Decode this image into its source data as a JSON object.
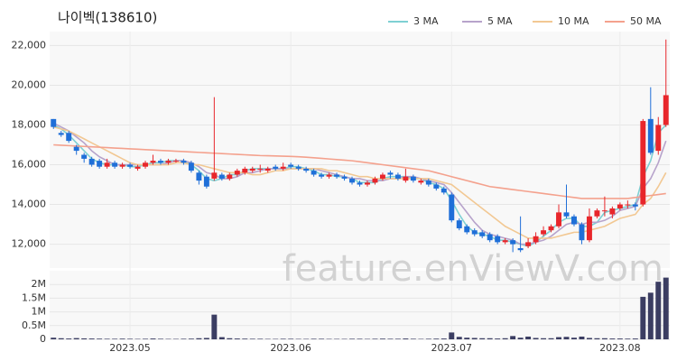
{
  "chart_data": {
    "type": "candlestick",
    "title": "나이벡(138610)",
    "watermark": "feature.enViewV.com",
    "categories": [
      null,
      null,
      null,
      null,
      null,
      null,
      null,
      null,
      null,
      null,
      "2023.05",
      null,
      null,
      null,
      null,
      null,
      null,
      null,
      null,
      null,
      null,
      null,
      null,
      null,
      null,
      null,
      null,
      null,
      null,
      null,
      null,
      "2023.06",
      null,
      null,
      null,
      null,
      null,
      null,
      null,
      null,
      null,
      null,
      null,
      null,
      null,
      null,
      null,
      null,
      null,
      null,
      null,
      null,
      "2023.07",
      null,
      null,
      null,
      null,
      null,
      null,
      null,
      null,
      null,
      null,
      null,
      null,
      null,
      null,
      null,
      null,
      null,
      null,
      null,
      null,
      null,
      "2023.08",
      null,
      null,
      null,
      null,
      null,
      null
    ],
    "open": [
      18300,
      17600,
      17600,
      16900,
      16500,
      16300,
      16200,
      15900,
      16100,
      15900,
      16000,
      15800,
      15900,
      16100,
      16200,
      16100,
      16200,
      16200,
      16100,
      15600,
      15400,
      15300,
      15500,
      15300,
      15500,
      15600,
      15700,
      15800,
      15700,
      15900,
      15800,
      16000,
      15900,
      15800,
      15700,
      15500,
      15400,
      15500,
      15400,
      15300,
      15100,
      15000,
      15100,
      15300,
      15600,
      15500,
      15200,
      15400,
      15100,
      15200,
      15000,
      14800,
      14500,
      13200,
      12900,
      12700,
      12600,
      12500,
      12400,
      12100,
      12200,
      11800,
      11900,
      12100,
      12500,
      12700,
      12900,
      13600,
      13400,
      13000,
      12200,
      13400,
      13700,
      13500,
      13800,
      14000,
      14000,
      14000,
      18300,
      16700,
      18000
    ],
    "high": [
      18300,
      17700,
      17700,
      17000,
      16600,
      16400,
      16300,
      16300,
      16200,
      16100,
      16100,
      16000,
      16200,
      16500,
      16300,
      16300,
      16300,
      16300,
      16200,
      15700,
      15500,
      19400,
      15600,
      15600,
      15800,
      15900,
      15900,
      16000,
      15900,
      16000,
      16100,
      16100,
      16000,
      15900,
      15800,
      15600,
      15600,
      15600,
      15500,
      15400,
      15200,
      15200,
      15400,
      15600,
      15700,
      15600,
      15800,
      15500,
      15300,
      15300,
      15100,
      14900,
      14600,
      13300,
      13000,
      12800,
      12700,
      12600,
      12500,
      12300,
      12300,
      13400,
      12300,
      12600,
      12900,
      13000,
      14000,
      15000,
      13500,
      13100,
      13800,
      13800,
      14400,
      13900,
      14100,
      14200,
      14100,
      18300,
      19900,
      18400,
      22300
    ],
    "low": [
      17800,
      17400,
      17100,
      16500,
      16100,
      15900,
      15800,
      15800,
      15800,
      15800,
      15800,
      15700,
      15800,
      16000,
      16000,
      16000,
      16100,
      16000,
      15600,
      15000,
      14800,
      15200,
      15200,
      15200,
      15400,
      15500,
      15600,
      15600,
      15600,
      15700,
      15700,
      15800,
      15700,
      15600,
      15400,
      15300,
      15300,
      15300,
      15200,
      15000,
      14900,
      14900,
      15000,
      15200,
      15300,
      15200,
      15100,
      15100,
      15000,
      14900,
      14700,
      14500,
      13100,
      12700,
      12500,
      12400,
      12300,
      12100,
      12000,
      12000,
      11600,
      11600,
      11800,
      12000,
      12400,
      12600,
      12800,
      13300,
      12900,
      12000,
      12100,
      13300,
      13400,
      13300,
      13700,
      13800,
      13700,
      13900,
      16500,
      16500,
      17900
    ],
    "close": [
      17900,
      17500,
      17200,
      16700,
      16300,
      16000,
      15900,
      16100,
      15900,
      16000,
      15900,
      15900,
      16100,
      16200,
      16100,
      16200,
      16200,
      16100,
      15700,
      15200,
      14900,
      15600,
      15300,
      15500,
      15700,
      15800,
      15800,
      15800,
      15800,
      15800,
      15900,
      15900,
      15800,
      15700,
      15500,
      15400,
      15500,
      15400,
      15300,
      15100,
      15000,
      15100,
      15300,
      15500,
      15500,
      15300,
      15400,
      15200,
      15200,
      15000,
      14800,
      14600,
      13200,
      12800,
      12600,
      12500,
      12400,
      12200,
      12100,
      12200,
      12000,
      11700,
      12100,
      12400,
      12700,
      12900,
      13600,
      13400,
      13000,
      12200,
      13400,
      13700,
      13700,
      13800,
      14000,
      14000,
      13900,
      18200,
      16600,
      18000,
      19500
    ],
    "volume": [
      60000,
      40000,
      30000,
      45000,
      35000,
      30000,
      25000,
      20000,
      20000,
      25000,
      20000,
      15000,
      20000,
      30000,
      20000,
      15000,
      15000,
      20000,
      25000,
      40000,
      50000,
      900000,
      80000,
      40000,
      30000,
      25000,
      20000,
      20000,
      15000,
      15000,
      20000,
      20000,
      15000,
      15000,
      20000,
      20000,
      15000,
      15000,
      15000,
      20000,
      20000,
      15000,
      20000,
      25000,
      20000,
      20000,
      30000,
      20000,
      15000,
      20000,
      25000,
      30000,
      250000,
      90000,
      60000,
      50000,
      40000,
      40000,
      30000,
      40000,
      120000,
      60000,
      100000,
      50000,
      40000,
      40000,
      80000,
      90000,
      60000,
      100000,
      50000,
      40000,
      40000,
      30000,
      30000,
      25000,
      30000,
      1550000,
      1700000,
      2100000,
      2250000
    ],
    "up_color": "#e8262b",
    "down_color": "#1f6fd8",
    "volume_color": "#3b3d62",
    "series": [
      {
        "name": "3 MA",
        "color": "#7ed0d3",
        "values": [
          18000,
          17800,
          17500,
          17100,
          16700,
          16300,
          16100,
          16000,
          16000,
          16000,
          15900,
          15900,
          16000,
          16100,
          16100,
          16200,
          16200,
          16200,
          16000,
          15700,
          15300,
          15200,
          15300,
          15500,
          15500,
          15700,
          15800,
          15800,
          15800,
          15800,
          15800,
          15900,
          15900,
          15800,
          15700,
          15500,
          15500,
          15400,
          15400,
          15300,
          15100,
          15100,
          15100,
          15300,
          15400,
          15400,
          15400,
          15300,
          15300,
          15100,
          15000,
          14800,
          14200,
          13500,
          12900,
          12600,
          12500,
          12400,
          12200,
          12200,
          12100,
          12000,
          11900,
          12100,
          12400,
          12700,
          13100,
          13300,
          13300,
          12900,
          12900,
          13100,
          13600,
          13700,
          13800,
          13900,
          14000,
          15400,
          16200,
          17600,
          18000
        ]
      },
      {
        "name": "5 MA",
        "color": "#b7a3cb",
        "values": [
          18100,
          17900,
          17700,
          17400,
          17100,
          16700,
          16400,
          16200,
          16000,
          16000,
          16000,
          16000,
          16000,
          16000,
          16000,
          16100,
          16200,
          16200,
          16100,
          15900,
          15600,
          15500,
          15300,
          15300,
          15400,
          15600,
          15600,
          15700,
          15800,
          15800,
          15800,
          15800,
          15800,
          15800,
          15800,
          15700,
          15600,
          15500,
          15400,
          15300,
          15300,
          15200,
          15200,
          15200,
          15300,
          15300,
          15400,
          15400,
          15300,
          15200,
          15100,
          15000,
          14600,
          14100,
          13600,
          13100,
          12700,
          12500,
          12400,
          12300,
          12200,
          12000,
          12000,
          12100,
          12200,
          12400,
          12700,
          13000,
          13100,
          13000,
          13100,
          13100,
          13200,
          13400,
          13700,
          13800,
          13900,
          14800,
          15300,
          16100,
          17200
        ]
      },
      {
        "name": "10 MA",
        "color": "#f2c893",
        "values": [
          17900,
          17800,
          17700,
          17500,
          17300,
          17100,
          16900,
          16700,
          16500,
          16300,
          16100,
          16000,
          16000,
          16000,
          16000,
          16000,
          16100,
          16100,
          16000,
          16000,
          15900,
          15800,
          15700,
          15600,
          15600,
          15600,
          15500,
          15500,
          15600,
          15700,
          15700,
          15800,
          15800,
          15800,
          15800,
          15800,
          15700,
          15700,
          15600,
          15500,
          15400,
          15400,
          15300,
          15300,
          15300,
          15300,
          15300,
          15300,
          15300,
          15300,
          15200,
          15100,
          15000,
          14700,
          14400,
          14100,
          13800,
          13500,
          13200,
          12900,
          12700,
          12500,
          12300,
          12300,
          12300,
          12300,
          12400,
          12500,
          12600,
          12600,
          12700,
          12800,
          12900,
          13100,
          13300,
          13400,
          13500,
          14000,
          14300,
          14900,
          15600
        ]
      },
      {
        "name": "50 MA",
        "color": "#f4a18d",
        "values": [
          17000,
          16980,
          16960,
          16940,
          16920,
          16900,
          16880,
          16860,
          16840,
          16820,
          16800,
          16780,
          16760,
          16740,
          16720,
          16700,
          16680,
          16660,
          16640,
          16620,
          16600,
          16580,
          16560,
          16540,
          16520,
          16500,
          16480,
          16460,
          16450,
          16440,
          16430,
          16420,
          16400,
          16380,
          16350,
          16320,
          16290,
          16260,
          16230,
          16200,
          16150,
          16100,
          16050,
          16000,
          15950,
          15900,
          15850,
          15800,
          15750,
          15700,
          15600,
          15500,
          15400,
          15300,
          15200,
          15100,
          15000,
          14900,
          14850,
          14800,
          14750,
          14700,
          14650,
          14600,
          14550,
          14500,
          14450,
          14400,
          14350,
          14300,
          14300,
          14300,
          14300,
          14300,
          14300,
          14300,
          14350,
          14400,
          14450,
          14500,
          14550
        ]
      }
    ],
    "ylim": [
      10800,
      22700
    ],
    "yticks": [
      {
        "value": 12000,
        "label": "12,000"
      },
      {
        "value": 14000,
        "label": "14,000"
      },
      {
        "value": 16000,
        "label": "16,000"
      },
      {
        "value": 18000,
        "label": "18,000"
      },
      {
        "value": 20000,
        "label": "20,000"
      },
      {
        "value": 22000,
        "label": "22,000"
      }
    ],
    "volume_ylim": [
      0,
      2500000
    ],
    "volume_yticks": [
      0,
      {
        "value": 500000,
        "label": "0.5M"
      },
      {
        "value": 1000000,
        "label": "1M"
      },
      {
        "value": 1500000,
        "label": "1.5M"
      },
      {
        "value": 2000000,
        "label": "2M"
      }
    ],
    "grid": true
  }
}
